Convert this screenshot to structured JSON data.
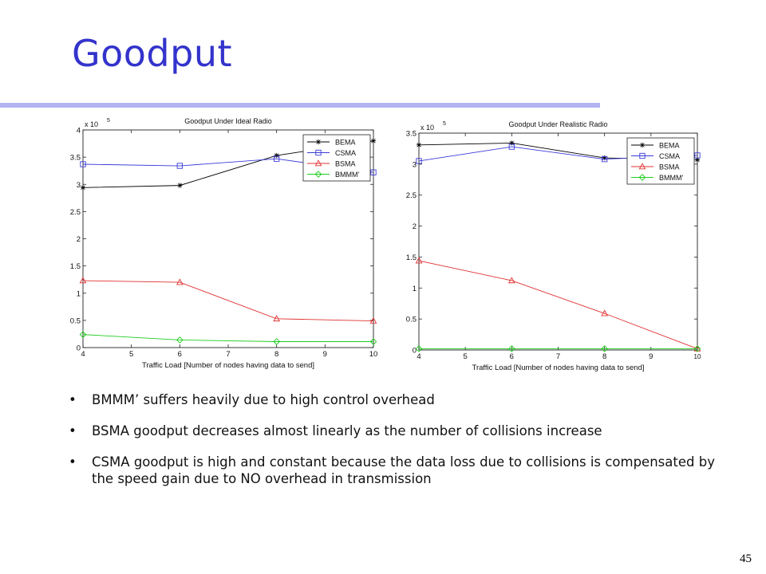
{
  "slide": {
    "title": "Goodput",
    "page_number": "45",
    "bullets": [
      "BMMM’ suffers heavily due to high control overhead",
      "BSMA goodput decreases almost linearly as the number of collisions increase",
      "CSMA goodput is high and constant because the data loss due to collisions is compensated by the speed gain due to NO overhead in transmission"
    ]
  },
  "colors": {
    "title": "#3333cc",
    "rule": "#b3b3f2",
    "BEMA": "#000000",
    "CSMA": "#3a3ad9",
    "BSMA": "#e03030",
    "BMMM'": "#1fcc1f"
  },
  "chart_data": [
    {
      "type": "line",
      "title": "Goodput Under Ideal Radio",
      "xlabel": "Traffic Load [Number of nodes having data to send]",
      "ylabel": "",
      "y_multiplier": "x 10",
      "y_exponent": "5",
      "xlim": [
        4,
        10
      ],
      "ylim": [
        0,
        4
      ],
      "xticks": [
        4,
        5,
        6,
        7,
        8,
        9,
        10
      ],
      "yticks": [
        0,
        0.5,
        1,
        1.5,
        2,
        2.5,
        3,
        3.5,
        4
      ],
      "x": [
        4,
        6,
        8,
        10
      ],
      "legend_position": "top-right",
      "grid": false,
      "series": [
        {
          "name": "BEMA",
          "marker": "star",
          "values": [
            2.94,
            2.98,
            3.53,
            3.8
          ]
        },
        {
          "name": "CSMA",
          "marker": "square",
          "values": [
            3.37,
            3.34,
            3.47,
            3.22
          ]
        },
        {
          "name": "BSMA",
          "marker": "triangle",
          "values": [
            1.23,
            1.2,
            0.53,
            0.49
          ]
        },
        {
          "name": "BMMM'",
          "marker": "diamond",
          "values": [
            0.24,
            0.14,
            0.11,
            0.11
          ]
        }
      ]
    },
    {
      "type": "line",
      "title": "Goodput Under Realistic Radio",
      "xlabel": "Traffic Load [Number of nodes having data to send]",
      "ylabel": "",
      "y_multiplier": "x 10",
      "y_exponent": "5",
      "xlim": [
        4,
        10
      ],
      "ylim": [
        0,
        3.5
      ],
      "xticks": [
        4,
        5,
        6,
        7,
        8,
        9,
        10
      ],
      "yticks": [
        0,
        0.5,
        1,
        1.5,
        2,
        2.5,
        3,
        3.5
      ],
      "x": [
        4,
        6,
        8,
        10
      ],
      "legend_position": "top-right",
      "grid": false,
      "series": [
        {
          "name": "BEMA",
          "marker": "star",
          "values": [
            3.31,
            3.34,
            3.1,
            3.07
          ]
        },
        {
          "name": "CSMA",
          "marker": "square",
          "values": [
            3.05,
            3.28,
            3.08,
            3.14
          ]
        },
        {
          "name": "BSMA",
          "marker": "triangle",
          "values": [
            1.44,
            1.12,
            0.59,
            0.02
          ]
        },
        {
          "name": "BMMM'",
          "marker": "diamond",
          "values": [
            0.02,
            0.02,
            0.02,
            0.02
          ]
        }
      ]
    }
  ]
}
